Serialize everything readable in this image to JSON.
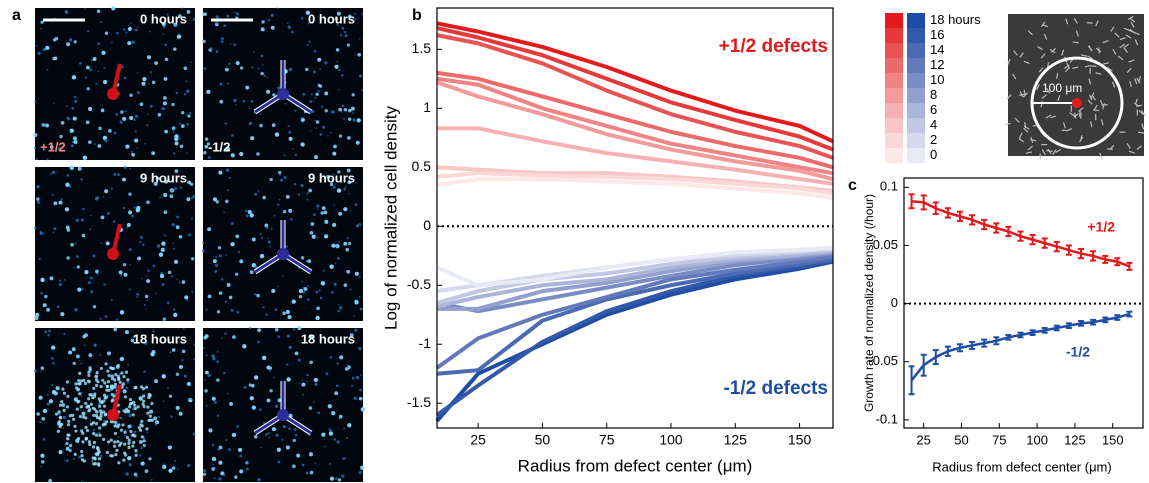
{
  "panel_a": {
    "label": "a",
    "times": [
      "0 hours",
      "9 hours",
      "18 hours"
    ],
    "charges": [
      "+1/2",
      "-1/2"
    ]
  },
  "inset": {
    "scale_label": "100 μm"
  },
  "chart_data": [
    {
      "type": "line",
      "panel_label": "b",
      "x_label": "Radius from defect center (μm)",
      "y_label": "Log of normalized cell density",
      "annotations": [
        "+1/2 defects",
        "-1/2 defects"
      ],
      "colorbar_labels": [
        "18 hours",
        "16",
        "14",
        "12",
        "10",
        "8",
        "6",
        "4",
        "2",
        "0"
      ],
      "x": [
        9,
        25,
        50,
        75,
        100,
        125,
        150,
        163
      ],
      "xlim": [
        9,
        163
      ],
      "xticks": [
        25,
        50,
        75,
        100,
        125,
        150
      ],
      "ylim": [
        -1.71,
        1.85
      ],
      "yticks": [
        -1.5,
        -1,
        -0.5,
        0,
        0.5,
        1,
        1.5
      ],
      "series": [
        {
          "color": "#e3191c",
          "values": [
            1.72,
            1.65,
            1.52,
            1.35,
            1.15,
            0.98,
            0.85,
            0.72
          ]
        },
        {
          "color": "#e6393a",
          "values": [
            1.68,
            1.6,
            1.45,
            1.25,
            1.05,
            0.9,
            0.76,
            0.65
          ]
        },
        {
          "color": "#ea5253",
          "values": [
            1.62,
            1.55,
            1.38,
            1.15,
            0.95,
            0.8,
            0.68,
            0.58
          ]
        },
        {
          "color": "#ed6a6b",
          "values": [
            1.3,
            1.25,
            1.1,
            0.95,
            0.8,
            0.68,
            0.58,
            0.5
          ]
        },
        {
          "color": "#f08384",
          "values": [
            1.25,
            1.2,
            1.0,
            0.85,
            0.7,
            0.6,
            0.5,
            0.45
          ]
        },
        {
          "color": "#f39a9b",
          "values": [
            1.22,
            1.1,
            0.95,
            0.78,
            0.65,
            0.55,
            0.47,
            0.4
          ]
        },
        {
          "color": "#f6b1b2",
          "values": [
            0.83,
            0.83,
            0.72,
            0.62,
            0.55,
            0.48,
            0.4,
            0.36
          ]
        },
        {
          "color": "#f9c6c7",
          "values": [
            0.5,
            0.48,
            0.45,
            0.45,
            0.42,
            0.38,
            0.33,
            0.3
          ]
        },
        {
          "color": "#fbd8d8",
          "values": [
            0.42,
            0.45,
            0.43,
            0.42,
            0.4,
            0.36,
            0.32,
            0.28
          ]
        },
        {
          "color": "#fde8e8",
          "values": [
            0.35,
            0.4,
            0.4,
            0.38,
            0.36,
            0.32,
            0.28,
            0.24
          ]
        },
        {
          "color": "#1f4da3",
          "values": [
            -1.65,
            -1.25,
            -1.0,
            -0.75,
            -0.58,
            -0.45,
            -0.36,
            -0.3
          ]
        },
        {
          "color": "#3359aa",
          "values": [
            -1.6,
            -1.35,
            -0.98,
            -0.72,
            -0.55,
            -0.42,
            -0.34,
            -0.29
          ]
        },
        {
          "color": "#4a6bb3",
          "values": [
            -1.25,
            -1.22,
            -0.8,
            -0.62,
            -0.5,
            -0.4,
            -0.32,
            -0.28
          ]
        },
        {
          "color": "#6279bb",
          "values": [
            -1.2,
            -0.95,
            -0.75,
            -0.6,
            -0.45,
            -0.37,
            -0.3,
            -0.26
          ]
        },
        {
          "color": "#7a8cc4",
          "values": [
            -0.65,
            -0.72,
            -0.62,
            -0.52,
            -0.42,
            -0.33,
            -0.27,
            -0.23
          ]
        },
        {
          "color": "#939fce",
          "values": [
            -0.7,
            -0.7,
            -0.55,
            -0.48,
            -0.38,
            -0.3,
            -0.25,
            -0.22
          ]
        },
        {
          "color": "#abb4d9",
          "values": [
            -0.68,
            -0.6,
            -0.5,
            -0.45,
            -0.35,
            -0.28,
            -0.24,
            -0.21
          ]
        },
        {
          "color": "#c2c8e3",
          "values": [
            -0.65,
            -0.55,
            -0.45,
            -0.4,
            -0.32,
            -0.26,
            -0.22,
            -0.2
          ]
        },
        {
          "color": "#d6daec",
          "values": [
            -0.55,
            -0.5,
            -0.42,
            -0.35,
            -0.28,
            -0.24,
            -0.21,
            -0.19
          ]
        },
        {
          "color": "#e8eaf4",
          "values": [
            -0.35,
            -0.5,
            -0.45,
            -0.35,
            -0.28,
            -0.22,
            -0.2,
            -0.18
          ]
        }
      ]
    },
    {
      "type": "errorbar",
      "panel_label": "c",
      "x_label": "Radius from defect center (μm)",
      "y_label": "Growth rate of normalized density (/hour)",
      "annotations": [
        "+1/2",
        "-1/2"
      ],
      "x": [
        17,
        25,
        33,
        41,
        49,
        57,
        65,
        73,
        81,
        89,
        97,
        105,
        113,
        121,
        129,
        137,
        145,
        153,
        161
      ],
      "xlim": [
        12,
        170
      ],
      "xticks": [
        25,
        50,
        75,
        100,
        125,
        150
      ],
      "ylim": [
        -0.107,
        0.108
      ],
      "yticks": [
        -0.1,
        -0.05,
        0,
        0.05,
        0.1
      ],
      "series": [
        {
          "color": "#e3191c",
          "values": [
            0.088,
            0.087,
            0.082,
            0.078,
            0.075,
            0.072,
            0.068,
            0.065,
            0.062,
            0.058,
            0.055,
            0.052,
            0.049,
            0.046,
            0.043,
            0.041,
            0.038,
            0.036,
            0.032
          ],
          "errors": [
            0.006,
            0.006,
            0.005,
            0.004,
            0.004,
            0.004,
            0.004,
            0.004,
            0.004,
            0.004,
            0.004,
            0.004,
            0.004,
            0.004,
            0.004,
            0.004,
            0.003,
            0.003,
            0.003
          ]
        },
        {
          "color": "#1f4da3",
          "values": [
            -0.066,
            -0.053,
            -0.046,
            -0.041,
            -0.038,
            -0.036,
            -0.034,
            -0.032,
            -0.029,
            -0.027,
            -0.025,
            -0.023,
            -0.021,
            -0.019,
            -0.017,
            -0.016,
            -0.014,
            -0.012,
            -0.009
          ],
          "errors": [
            0.012,
            0.009,
            0.006,
            0.004,
            0.003,
            0.003,
            0.003,
            0.003,
            0.002,
            0.002,
            0.002,
            0.002,
            0.002,
            0.002,
            0.002,
            0.002,
            0.002,
            0.002,
            0.002
          ]
        }
      ]
    }
  ]
}
